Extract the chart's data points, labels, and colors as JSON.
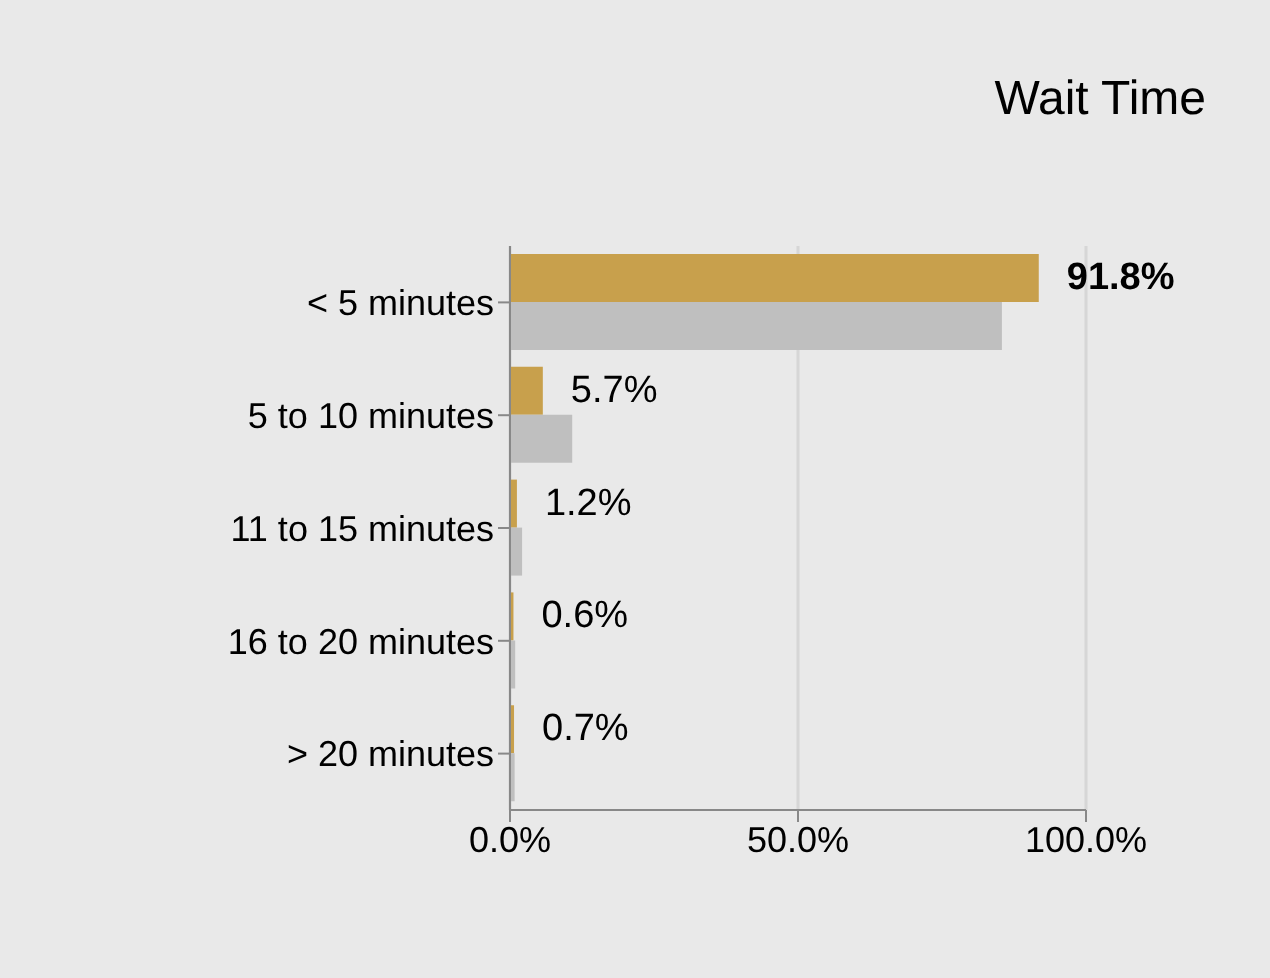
{
  "chart_data": {
    "type": "bar",
    "orientation": "horizontal",
    "title": "Wait Time",
    "categories": [
      "< 5 minutes",
      "5 to 10 minutes",
      "11 to 15 minutes",
      "16 to 20 minutes",
      "> 20 minutes"
    ],
    "series": [
      {
        "color": "#c8a04c",
        "values": [
          91.8,
          5.7,
          1.2,
          0.6,
          0.7
        ],
        "value_labels": [
          "91.8%",
          "5.7%",
          "1.2%",
          "0.6%",
          "0.7%"
        ]
      },
      {
        "color": "#bfbfbf",
        "values": [
          85.4,
          10.8,
          2.1,
          0.9,
          0.8
        ]
      }
    ],
    "xlim": [
      0,
      100
    ],
    "xticks": [
      {
        "value": 0,
        "label": "0.0%"
      },
      {
        "value": 50,
        "label": "50.0%"
      },
      {
        "value": 100,
        "label": "100.0%"
      }
    ],
    "grid": "x"
  }
}
